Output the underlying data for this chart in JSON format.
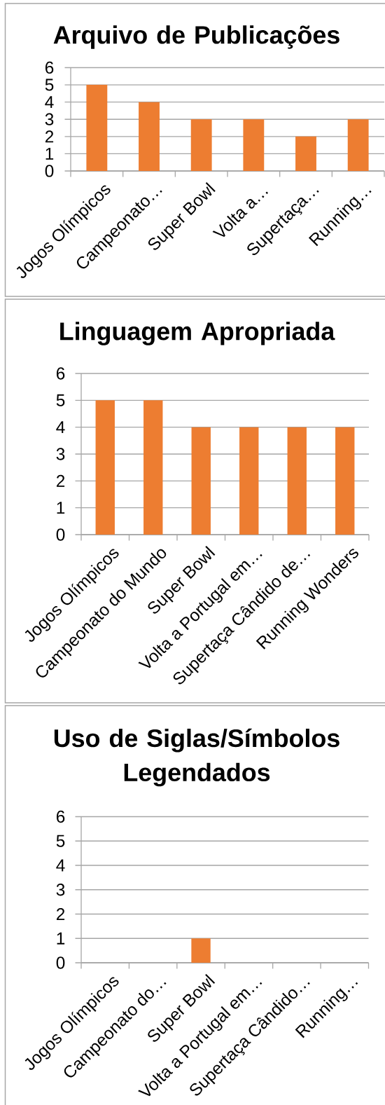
{
  "chart_data": [
    {
      "type": "bar",
      "title": "Arquivo de Publicações",
      "categories": [
        "Jogos Olímpicos",
        "Campeonato…",
        "Super Bowl",
        "Volta a…",
        "Supertaça…",
        "Running…"
      ],
      "values": [
        5,
        4,
        3,
        3,
        2,
        3
      ],
      "color": "#ed7d31",
      "ylim": [
        0,
        6
      ],
      "yticks": [
        0,
        1,
        2,
        3,
        4,
        5,
        6
      ],
      "grid": "y"
    },
    {
      "type": "bar",
      "title": "Linguagem Apropriada",
      "categories": [
        "Jogos Olímpicos",
        "Campeonato do Mundo",
        "Super Bowl",
        "Volta a Portugal em…",
        "Supertaça Cândido de…",
        "Running Wonders"
      ],
      "values": [
        5,
        5,
        4,
        4,
        4,
        4
      ],
      "color": "#ed7d31",
      "ylim": [
        0,
        6
      ],
      "yticks": [
        0,
        1,
        2,
        3,
        4,
        5,
        6
      ],
      "grid": "y"
    },
    {
      "type": "bar",
      "title": "Uso de Siglas/Símbolos Legendados",
      "categories": [
        "Jogos Olímpicos",
        "Campeonato do…",
        "Super Bowl",
        "Volta a Portugal em…",
        "Supertaça Cândido…",
        "Running…"
      ],
      "values": [
        0,
        0,
        1,
        0,
        0,
        0
      ],
      "color": "#ed7d31",
      "ylim": [
        0,
        6
      ],
      "yticks": [
        0,
        1,
        2,
        3,
        4,
        5,
        6
      ],
      "grid": "y"
    }
  ]
}
